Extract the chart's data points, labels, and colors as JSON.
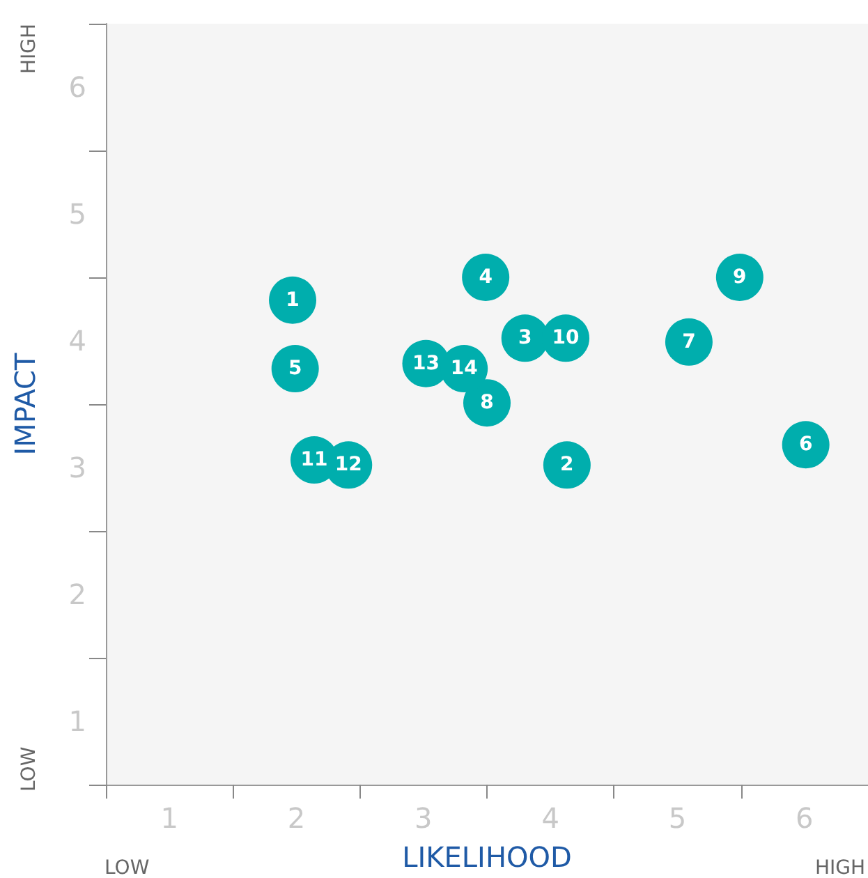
{
  "chart_data": {
    "type": "scatter",
    "xlabel": "LIKELIHOOD",
    "ylabel": "IMPACT",
    "series": [
      {
        "name": "1",
        "color": "#00aead",
        "x": [
          1.47
        ],
        "values": [
          3.82
        ]
      },
      {
        "name": "2",
        "color": "#00aead",
        "x": [
          3.63
        ],
        "values": [
          2.52
        ]
      },
      {
        "name": "3",
        "color": "#00aead",
        "x": [
          3.3
        ],
        "values": [
          3.52
        ]
      },
      {
        "name": "4",
        "color": "#00aead",
        "x": [
          2.99
        ],
        "values": [
          4.0
        ]
      },
      {
        "name": "5",
        "color": "#00aead",
        "x": [
          1.49
        ],
        "values": [
          3.28
        ]
      },
      {
        "name": "6",
        "color": "#00aead",
        "x": [
          5.51
        ],
        "values": [
          2.68
        ]
      },
      {
        "name": "7",
        "color": "#00aead",
        "x": [
          4.59
        ],
        "values": [
          3.49
        ]
      },
      {
        "name": "8",
        "color": "#00aead",
        "x": [
          3.0
        ],
        "values": [
          3.01
        ]
      },
      {
        "name": "9",
        "color": "#00aead",
        "x": [
          4.99
        ],
        "values": [
          4.0
        ]
      },
      {
        "name": "10",
        "color": "#00aead",
        "x": [
          3.62
        ],
        "values": [
          3.52
        ]
      },
      {
        "name": "11",
        "color": "#00aead",
        "x": [
          1.64
        ],
        "values": [
          2.56
        ]
      },
      {
        "name": "12",
        "color": "#00aead",
        "x": [
          1.91
        ],
        "values": [
          2.52
        ]
      },
      {
        "name": "13",
        "color": "#00aead",
        "x": [
          2.52
        ],
        "values": [
          3.32
        ]
      },
      {
        "name": "14",
        "color": "#00aead",
        "x": [
          2.82
        ],
        "values": [
          3.28
        ]
      }
    ],
    "xlim": [
      0,
      6
    ],
    "ylim": [
      0,
      6
    ],
    "xticks": [
      {
        "value": 0,
        "label": null
      },
      {
        "value": 0.5,
        "label": "1"
      },
      {
        "value": 1,
        "label": null
      },
      {
        "value": 1.5,
        "label": "2"
      },
      {
        "value": 2,
        "label": null
      },
      {
        "value": 2.5,
        "label": "3"
      },
      {
        "value": 3,
        "label": null
      },
      {
        "value": 3.5,
        "label": "4"
      },
      {
        "value": 4,
        "label": null
      },
      {
        "value": 4.5,
        "label": "5"
      },
      {
        "value": 5,
        "label": null
      },
      {
        "value": 5.5,
        "label": "6"
      },
      {
        "value": 6,
        "label": null
      }
    ],
    "yticks": [
      {
        "value": 0,
        "label": null
      },
      {
        "value": 0.5,
        "label": "1"
      },
      {
        "value": 1,
        "label": null
      },
      {
        "value": 1.5,
        "label": "2"
      },
      {
        "value": 2,
        "label": null
      },
      {
        "value": 2.5,
        "label": "3"
      },
      {
        "value": 3,
        "label": null
      },
      {
        "value": 3.5,
        "label": "4"
      },
      {
        "value": 4,
        "label": null
      },
      {
        "value": 4.5,
        "label": "5"
      },
      {
        "value": 5,
        "label": null
      },
      {
        "value": 5.5,
        "label": "6"
      },
      {
        "value": 6,
        "label": null
      }
    ],
    "annotations": [
      "LOW",
      "HIGH",
      "LOW",
      "HIGH"
    ],
    "grid": false,
    "legend": false,
    "marker": "circle"
  }
}
